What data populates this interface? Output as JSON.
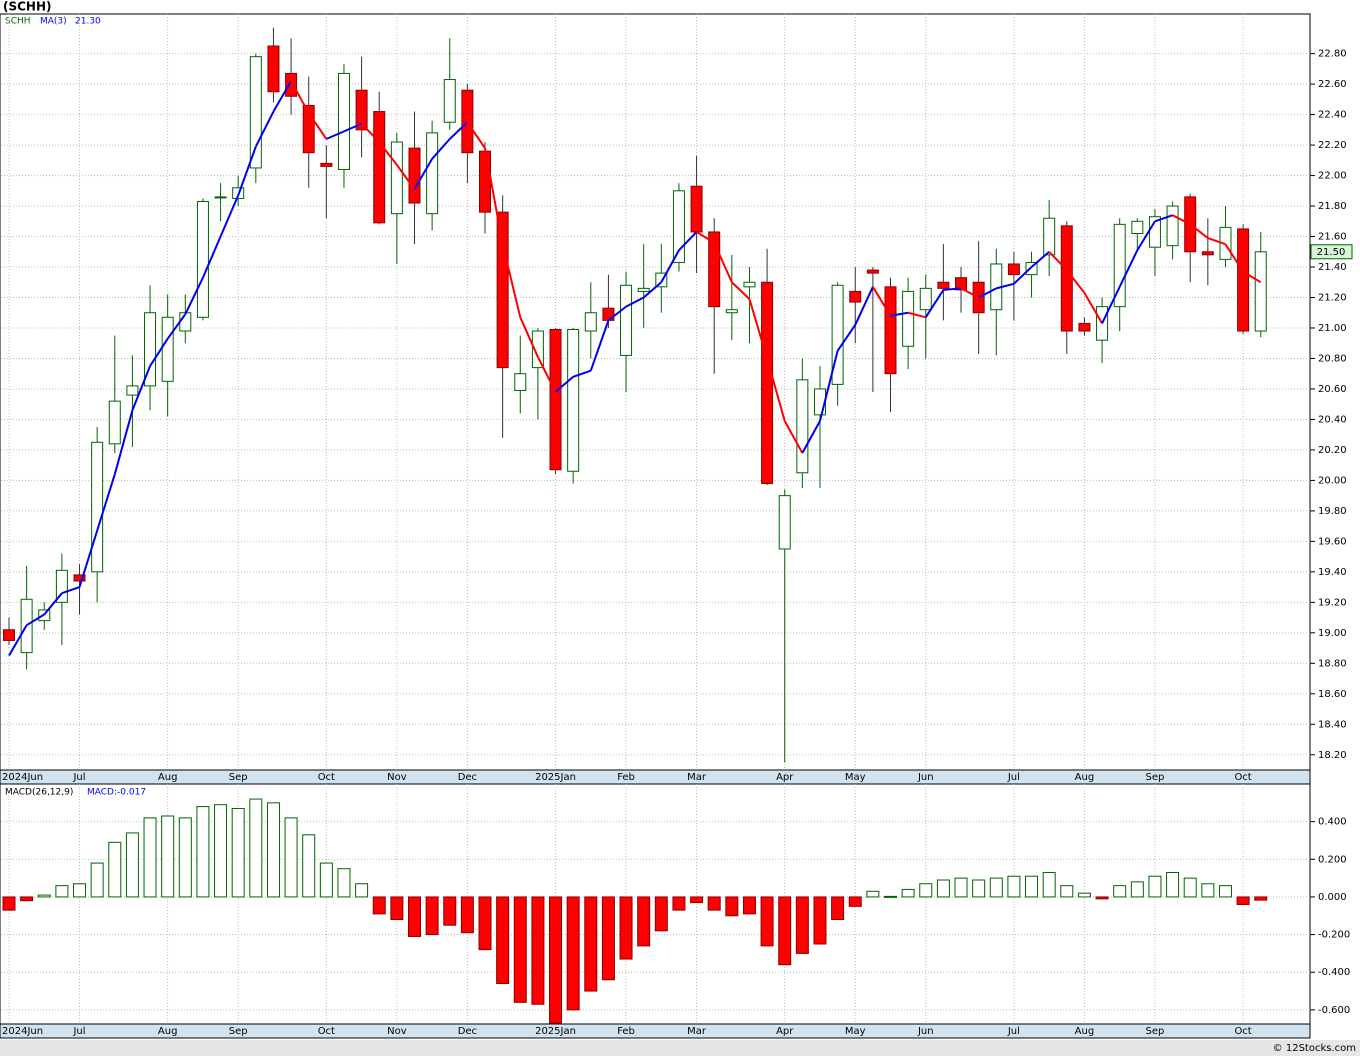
{
  "chart_data": [
    {
      "type": "candlestick",
      "title": "(SCHH)",
      "ticker": "SCHH",
      "categories": [
        "2024Jun",
        null,
        null,
        null,
        "Jul",
        null,
        null,
        null,
        null,
        "Aug",
        null,
        null,
        null,
        "Sep",
        null,
        null,
        null,
        null,
        "Oct",
        null,
        null,
        null,
        "Nov",
        null,
        null,
        null,
        "Dec",
        null,
        null,
        null,
        null,
        "2025Jan",
        null,
        null,
        null,
        "Feb",
        null,
        null,
        null,
        "Mar",
        null,
        null,
        null,
        null,
        "Apr",
        null,
        null,
        null,
        "May",
        null,
        null,
        null,
        "Jun",
        null,
        null,
        null,
        null,
        "Jul",
        null,
        null,
        null,
        "Aug",
        null,
        null,
        null,
        "Sep",
        null,
        null,
        null,
        null,
        "Oct",
        null
      ],
      "open": [
        19.02,
        18.87,
        19.08,
        19.2,
        19.38,
        19.4,
        20.24,
        20.56,
        20.62,
        20.65,
        20.98,
        21.07,
        21.86,
        21.85,
        22.05,
        22.85,
        22.67,
        22.46,
        22.08,
        22.04,
        22.56,
        22.42,
        21.75,
        22.18,
        21.75,
        22.35,
        22.56,
        22.16,
        21.76,
        20.59,
        20.74,
        20.99,
        20.06,
        20.98,
        21.13,
        20.82,
        21.24,
        21.27,
        21.43,
        21.93,
        21.63,
        21.1,
        21.27,
        21.3,
        19.55,
        20.05,
        20.43,
        20.63,
        21.24,
        21.38,
        21.27,
        20.88,
        21.12,
        21.3,
        21.33,
        21.3,
        21.12,
        21.42,
        21.35,
        21.48,
        21.67,
        21.03,
        20.92,
        21.14,
        21.62,
        21.53,
        21.54,
        21.86,
        21.5,
        21.45,
        21.65,
        20.98
      ],
      "high": [
        19.1,
        19.44,
        19.2,
        19.52,
        19.45,
        20.35,
        20.95,
        20.82,
        21.28,
        21.22,
        21.22,
        21.85,
        21.95,
        22.0,
        22.8,
        22.97,
        22.9,
        22.65,
        22.2,
        22.73,
        22.78,
        22.55,
        22.28,
        22.42,
        22.36,
        22.9,
        22.6,
        22.22,
        21.87,
        20.95,
        21.0,
        21.0,
        21.0,
        21.3,
        21.35,
        21.37,
        21.55,
        21.55,
        21.95,
        22.13,
        21.72,
        21.48,
        21.4,
        21.52,
        19.94,
        20.8,
        20.75,
        21.3,
        21.4,
        21.4,
        21.33,
        21.33,
        21.35,
        21.55,
        21.4,
        21.57,
        21.52,
        21.5,
        21.5,
        21.84,
        21.7,
        21.07,
        21.2,
        21.72,
        21.72,
        21.78,
        21.83,
        21.88,
        21.72,
        21.8,
        21.68,
        21.63
      ],
      "low": [
        18.92,
        18.76,
        19.02,
        18.92,
        19.12,
        19.2,
        20.18,
        20.22,
        20.46,
        20.42,
        20.9,
        21.05,
        21.7,
        21.8,
        21.95,
        22.48,
        22.4,
        21.92,
        21.72,
        21.92,
        22.12,
        21.68,
        21.42,
        21.55,
        21.64,
        22.3,
        21.95,
        21.62,
        20.28,
        20.44,
        20.4,
        20.04,
        19.98,
        20.8,
        21.0,
        20.58,
        21.0,
        21.1,
        21.37,
        21.36,
        20.7,
        20.92,
        20.9,
        19.97,
        18.15,
        19.95,
        19.95,
        20.49,
        20.9,
        20.58,
        20.45,
        20.73,
        20.8,
        21.05,
        21.1,
        20.83,
        20.82,
        21.05,
        21.2,
        21.34,
        20.83,
        20.95,
        20.77,
        20.98,
        21.5,
        21.34,
        21.45,
        21.3,
        21.28,
        21.4,
        20.96,
        20.94
      ],
      "close": [
        18.95,
        19.22,
        19.15,
        19.41,
        19.34,
        20.25,
        20.52,
        20.62,
        21.1,
        21.07,
        21.1,
        21.83,
        21.86,
        21.92,
        22.78,
        22.55,
        22.52,
        22.15,
        22.06,
        22.67,
        22.3,
        21.69,
        22.22,
        21.82,
        22.28,
        22.63,
        22.15,
        21.76,
        20.74,
        20.7,
        20.98,
        20.07,
        20.99,
        21.1,
        21.05,
        21.28,
        21.26,
        21.36,
        21.9,
        21.63,
        21.14,
        21.12,
        21.3,
        19.98,
        19.9,
        20.66,
        20.6,
        21.28,
        21.17,
        21.36,
        20.7,
        21.24,
        21.26,
        21.26,
        21.25,
        21.1,
        21.42,
        21.35,
        21.43,
        21.72,
        20.98,
        20.98,
        21.14,
        21.68,
        21.7,
        21.73,
        21.8,
        21.5,
        21.48,
        21.66,
        20.98,
        21.5
      ],
      "last_close_label": "21.50",
      "up_color": "#006400",
      "down_color": "#ff0000",
      "ma": {
        "name": "MA(3)",
        "last_value_label": "21.30",
        "up_color": "#0000ee",
        "down_color": "#ff0000",
        "values": [
          18.85,
          19.05,
          19.12,
          19.26,
          19.3,
          19.67,
          20.04,
          20.46,
          20.75,
          20.93,
          21.09,
          21.33,
          21.6,
          21.87,
          22.19,
          22.42,
          22.62,
          22.41,
          22.24,
          22.29,
          22.34,
          22.22,
          22.07,
          21.91,
          22.11,
          22.24,
          22.35,
          22.18,
          21.55,
          21.07,
          20.81,
          20.58,
          20.68,
          20.72,
          21.05,
          21.14,
          21.2,
          21.3,
          21.51,
          21.63,
          21.56,
          21.3,
          21.19,
          20.8,
          20.39,
          20.18,
          20.39,
          20.85,
          21.02,
          21.27,
          21.08,
          21.1,
          21.07,
          21.25,
          21.26,
          21.2,
          21.26,
          21.29,
          21.4,
          21.5,
          21.38,
          21.23,
          21.03,
          21.27,
          21.51,
          21.7,
          21.74,
          21.68,
          21.59,
          21.55,
          21.37,
          21.3
        ]
      },
      "ylim": [
        18.1,
        23.06
      ],
      "yticks": [
        {
          "value": 18.2,
          "label": "18.20"
        },
        {
          "value": 18.4,
          "label": "18.40"
        },
        {
          "value": 18.6,
          "label": "18.60"
        },
        {
          "value": 18.8,
          "label": "18.80"
        },
        {
          "value": 19.0,
          "label": "19.00"
        },
        {
          "value": 19.2,
          "label": "19.20"
        },
        {
          "value": 19.4,
          "label": "19.40"
        },
        {
          "value": 19.6,
          "label": "19.60"
        },
        {
          "value": 19.8,
          "label": "19.80"
        },
        {
          "value": 20.0,
          "label": "20.00"
        },
        {
          "value": 20.2,
          "label": "20.20"
        },
        {
          "value": 20.4,
          "label": "20.40"
        },
        {
          "value": 20.6,
          "label": "20.60"
        },
        {
          "value": 20.8,
          "label": "20.80"
        },
        {
          "value": 21.0,
          "label": "21.00"
        },
        {
          "value": 21.2,
          "label": "21.20"
        },
        {
          "value": 21.4,
          "label": "21.40"
        },
        {
          "value": 21.6,
          "label": "21.60"
        },
        {
          "value": 21.8,
          "label": "21.80"
        },
        {
          "value": 22.0,
          "label": "22.00"
        },
        {
          "value": 22.2,
          "label": "22.20"
        },
        {
          "value": 22.4,
          "label": "22.40"
        },
        {
          "value": 22.6,
          "label": "22.60"
        },
        {
          "value": 22.8,
          "label": "22.80"
        }
      ],
      "grid": true
    },
    {
      "type": "bar",
      "name": "MACD(26,12,9)",
      "legend": "MACD:-0.017",
      "categories": [
        "2024Jun",
        null,
        null,
        null,
        "Jul",
        null,
        null,
        null,
        null,
        "Aug",
        null,
        null,
        null,
        "Sep",
        null,
        null,
        null,
        null,
        "Oct",
        null,
        null,
        null,
        "Nov",
        null,
        null,
        null,
        "Dec",
        null,
        null,
        null,
        null,
        "2025Jan",
        null,
        null,
        null,
        "Feb",
        null,
        null,
        null,
        "Mar",
        null,
        null,
        null,
        null,
        "Apr",
        null,
        null,
        null,
        "May",
        null,
        null,
        null,
        "Jun",
        null,
        null,
        null,
        null,
        "Jul",
        null,
        null,
        null,
        "Aug",
        null,
        null,
        null,
        "Sep",
        null,
        null,
        null,
        null,
        "Oct",
        null
      ],
      "values": [
        -0.07,
        -0.02,
        0.01,
        0.06,
        0.07,
        0.18,
        0.29,
        0.34,
        0.42,
        0.43,
        0.42,
        0.48,
        0.49,
        0.47,
        0.52,
        0.5,
        0.42,
        0.33,
        0.18,
        0.15,
        0.07,
        -0.09,
        -0.12,
        -0.21,
        -0.2,
        -0.15,
        -0.19,
        -0.28,
        -0.46,
        -0.56,
        -0.57,
        -0.67,
        -0.6,
        -0.5,
        -0.44,
        -0.33,
        -0.26,
        -0.18,
        -0.07,
        -0.03,
        -0.07,
        -0.1,
        -0.09,
        -0.26,
        -0.36,
        -0.3,
        -0.25,
        -0.12,
        -0.05,
        0.03,
        0.003,
        0.04,
        0.07,
        0.09,
        0.1,
        0.09,
        0.1,
        0.11,
        0.11,
        0.13,
        0.06,
        0.02,
        -0.01,
        0.06,
        0.08,
        0.11,
        0.13,
        0.1,
        0.07,
        0.06,
        -0.04,
        -0.017
      ],
      "up_color": "#006400",
      "down_color": "#ff0000",
      "ylim": [
        -0.675,
        0.6
      ],
      "yticks": [
        {
          "value": -0.6,
          "label": "-0.600"
        },
        {
          "value": -0.4,
          "label": "-0.400"
        },
        {
          "value": -0.2,
          "label": "-0.200"
        },
        {
          "value": 0,
          "label": "0.000"
        },
        {
          "value": 0.2,
          "label": "0.200"
        },
        {
          "value": 0.4,
          "label": "0.400"
        }
      ],
      "grid": true
    }
  ],
  "footer": "© 12Stocks.com"
}
